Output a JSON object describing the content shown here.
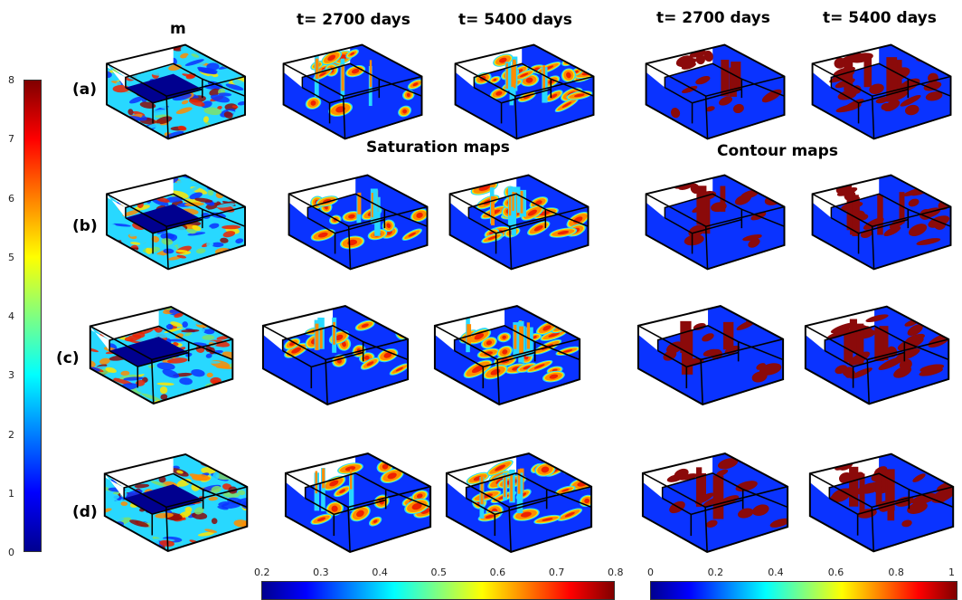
{
  "headers": {
    "m": "m",
    "sat_t1": "t= 2700 days",
    "sat_t2": "t= 5400 days",
    "con_t1": "t= 2700 days",
    "con_t2": "t= 5400 days",
    "saturation_maps": "Saturation maps",
    "contour_maps": "Contour maps"
  },
  "rows": [
    "(a)",
    "(b)",
    "(c)",
    "(d)"
  ],
  "colorbars": {
    "m": {
      "ticks": [
        "8",
        "7",
        "6",
        "5",
        "4",
        "3",
        "2",
        "1",
        "0"
      ],
      "min": 0,
      "max": 8,
      "orientation": "vertical",
      "colormap": "jet"
    },
    "saturation": {
      "ticks": [
        "0.2",
        "0.3",
        "0.4",
        "0.5",
        "0.6",
        "0.7",
        "0.8"
      ],
      "min": 0.2,
      "max": 0.8,
      "orientation": "horizontal",
      "colormap": "jet"
    },
    "contour": {
      "ticks": [
        "0",
        "0.2",
        "0.4",
        "0.6",
        "0.8",
        "1"
      ],
      "min": 0,
      "max": 1,
      "orientation": "horizontal",
      "colormap": "jet"
    }
  },
  "colors": {
    "deep_blue": "#00008f",
    "blue": "#0a33ff",
    "dark_red": "#8b0a0a",
    "red": "#ee2200",
    "orange": "#ff8c00",
    "yellow": "#ffe600",
    "cyan": "#28d8ff",
    "green": "#7ee06a",
    "outline": "#000000"
  },
  "jet_stops": [
    "#00008f",
    "#0000ff",
    "#0080ff",
    "#00ffff",
    "#80ff80",
    "#ffff00",
    "#ff8000",
    "#ff0000",
    "#800000"
  ]
}
